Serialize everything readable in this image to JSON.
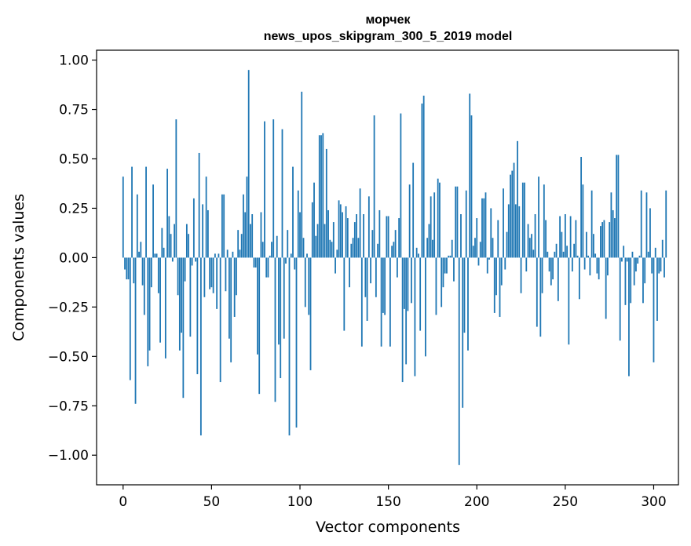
{
  "chart_data": {
    "type": "bar",
    "title": "морчек",
    "subtitle": "news_upos_skipgram_300_5_2019 model",
    "xlabel": "Vector components",
    "ylabel": "Components values",
    "xlim": [
      -15,
      314
    ],
    "ylim": [
      -1.15,
      1.05
    ],
    "x_ticks": [
      0,
      50,
      100,
      150,
      200,
      250,
      300
    ],
    "y_ticks": [
      -1.0,
      -0.75,
      -0.5,
      -0.25,
      0.0,
      0.25,
      0.5,
      0.75,
      1.0
    ],
    "x_tick_labels": [
      "0",
      "50",
      "100",
      "150",
      "200",
      "250",
      "300"
    ],
    "y_tick_labels": [
      "−1.00",
      "−0.75",
      "−0.50",
      "−0.25",
      "0.00",
      "0.25",
      "0.50",
      "0.75",
      "1.00"
    ],
    "bar_color": "#1f77b4",
    "grid": false,
    "values": [
      0.41,
      -0.06,
      -0.11,
      -0.11,
      -0.62,
      0.46,
      -0.13,
      -0.74,
      0.32,
      0.03,
      0.08,
      -0.14,
      -0.29,
      0.46,
      -0.55,
      -0.47,
      -0.15,
      0.37,
      0.02,
      0.02,
      -0.18,
      -0.43,
      0.15,
      0.05,
      -0.51,
      0.45,
      0.21,
      0.12,
      -0.02,
      0.17,
      0.7,
      -0.19,
      -0.47,
      -0.38,
      -0.71,
      -0.12,
      0.17,
      0.12,
      -0.4,
      -0.04,
      0.3,
      -0.02,
      -0.59,
      0.53,
      -0.9,
      0.27,
      -0.2,
      0.41,
      0.24,
      -0.16,
      -0.15,
      -0.18,
      0.02,
      -0.26,
      0.02,
      -0.63,
      0.32,
      0.32,
      -0.17,
      0.04,
      -0.41,
      -0.53,
      0.03,
      -0.3,
      -0.19,
      0.14,
      0.04,
      0.12,
      0.32,
      0.23,
      0.41,
      0.95,
      0.17,
      0.22,
      -0.05,
      -0.05,
      -0.49,
      -0.69,
      0.23,
      0.08,
      0.69,
      -0.1,
      -0.1,
      0.01,
      0.08,
      0.7,
      -0.73,
      0.11,
      -0.44,
      -0.61,
      0.65,
      -0.41,
      -0.03,
      0.14,
      -0.9,
      0.02,
      0.46,
      -0.06,
      -0.86,
      0.34,
      0.23,
      0.84,
      0.1,
      -0.25,
      0.02,
      -0.29,
      -0.57,
      0.28,
      0.38,
      0.11,
      0.17,
      0.62,
      0.62,
      0.63,
      0.17,
      0.55,
      0.24,
      0.09,
      0.08,
      0.18,
      -0.08,
      0.04,
      0.29,
      0.27,
      0.23,
      -0.37,
      0.26,
      0.2,
      -0.15,
      0.07,
      0.1,
      0.18,
      0.22,
      0.1,
      0.35,
      -0.45,
      0.22,
      -0.2,
      -0.32,
      0.31,
      -0.13,
      0.14,
      0.72,
      -0.2,
      0.07,
      0.24,
      -0.45,
      -0.28,
      -0.29,
      0.21,
      0.21,
      -0.45,
      0.06,
      0.08,
      0.14,
      -0.1,
      0.2,
      0.73,
      -0.63,
      -0.26,
      -0.54,
      -0.27,
      0.37,
      -0.23,
      0.48,
      -0.6,
      0.05,
      0.02,
      -0.37,
      0.78,
      0.82,
      -0.5,
      0.1,
      0.17,
      0.31,
      0.09,
      0.33,
      -0.29,
      0.4,
      0.38,
      -0.25,
      -0.15,
      -0.08,
      -0.08,
      0.01,
      0.01,
      0.09,
      -0.12,
      0.36,
      0.36,
      -1.05,
      0.22,
      -0.76,
      -0.38,
      0.34,
      -0.47,
      0.83,
      0.72,
      0.06,
      0.1,
      0.2,
      -0.04,
      0.08,
      0.3,
      0.3,
      0.33,
      -0.08,
      -0.01,
      0.25,
      0.1,
      -0.28,
      -0.19,
      0.19,
      -0.3,
      -0.14,
      0.35,
      -0.06,
      0.13,
      0.27,
      0.42,
      0.44,
      0.48,
      0.27,
      0.59,
      0.26,
      -0.18,
      0.38,
      0.38,
      -0.07,
      0.17,
      0.1,
      0.12,
      0.04,
      0.22,
      -0.35,
      0.41,
      -0.4,
      -0.18,
      0.37,
      0.19,
      0.03,
      -0.07,
      -0.14,
      -0.11,
      0.03,
      0.07,
      -0.22,
      0.21,
      0.13,
      0.03,
      0.22,
      0.06,
      -0.44,
      0.21,
      -0.07,
      0.07,
      0.19,
      0.01,
      -0.21,
      0.51,
      0.37,
      -0.06,
      0.13,
      0.01,
      -0.09,
      0.34,
      0.12,
      0.02,
      -0.08,
      -0.11,
      0.16,
      0.18,
      0.19,
      -0.31,
      -0.09,
      0.18,
      0.33,
      0.24,
      0.2,
      0.52,
      0.52,
      -0.42,
      -0.02,
      0.06,
      -0.24,
      -0.02,
      -0.6,
      -0.23,
      0.03,
      -0.14,
      -0.07,
      -0.03,
      0.01,
      0.34,
      -0.23,
      -0.13,
      0.33,
      0.03,
      0.25,
      -0.08,
      -0.53,
      0.05,
      -0.32,
      -0.08,
      -0.07,
      0.09,
      -0.1,
      0.34
    ]
  }
}
